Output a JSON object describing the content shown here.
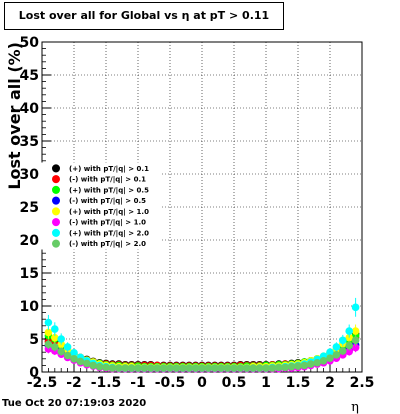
{
  "chart_data": {
    "type": "scatter",
    "title": "Lost over all for Global vs  η at pT > 0.11",
    "xlabel": "η",
    "ylabel": "Lost over all (%)",
    "xlim": [
      -2.5,
      2.5
    ],
    "ylim": [
      0,
      50
    ],
    "x_ticks": [
      "-2.5",
      "-2",
      "-1.5",
      "-1",
      "-0.5",
      "0",
      "0.5",
      "1",
      "1.5",
      "2",
      "2.5"
    ],
    "y_ticks": [
      "0",
      "5",
      "10",
      "15",
      "20",
      "25",
      "30",
      "35",
      "40",
      "45",
      "50"
    ],
    "grid": true,
    "legend_position": "left",
    "x": [
      -2.4,
      -2.3,
      -2.2,
      -2.1,
      -2.0,
      -1.9,
      -1.8,
      -1.7,
      -1.6,
      -1.5,
      -1.4,
      -1.3,
      -1.2,
      -1.1,
      -1.0,
      -0.9,
      -0.8,
      -0.7,
      -0.6,
      -0.5,
      -0.4,
      -0.3,
      -0.2,
      -0.1,
      0.0,
      0.1,
      0.2,
      0.3,
      0.4,
      0.5,
      0.6,
      0.7,
      0.8,
      0.9,
      1.0,
      1.1,
      1.2,
      1.3,
      1.4,
      1.5,
      1.6,
      1.7,
      1.8,
      1.9,
      2.0,
      2.1,
      2.2,
      2.3,
      2.4
    ],
    "series": [
      {
        "name": "(+) with pT/|q| > 0.1",
        "color": "#000000",
        "values": [
          5.0,
          4.5,
          3.8,
          3.0,
          2.5,
          2.2,
          1.9,
          1.6,
          1.4,
          1.3,
          1.2,
          1.2,
          1.1,
          1.1,
          1.1,
          1.1,
          1.1,
          1.0,
          1.0,
          1.0,
          1.0,
          1.0,
          1.0,
          1.0,
          1.0,
          1.0,
          1.0,
          1.0,
          1.0,
          1.0,
          1.1,
          1.1,
          1.1,
          1.1,
          1.1,
          1.1,
          1.2,
          1.2,
          1.3,
          1.4,
          1.5,
          1.7,
          1.9,
          2.2,
          2.6,
          3.1,
          3.8,
          4.6,
          5.8
        ]
      },
      {
        "name": "(-) with pT/|q| > 0.1",
        "color": "#ff0000",
        "values": [
          4.6,
          4.2,
          3.5,
          2.9,
          2.4,
          2.0,
          1.7,
          1.5,
          1.3,
          1.2,
          1.1,
          1.1,
          1.0,
          1.0,
          1.0,
          1.0,
          1.0,
          1.0,
          0.9,
          0.9,
          0.9,
          0.9,
          0.9,
          0.9,
          0.9,
          0.9,
          0.9,
          0.9,
          0.9,
          0.9,
          1.0,
          1.0,
          1.0,
          1.0,
          1.0,
          1.1,
          1.1,
          1.2,
          1.2,
          1.3,
          1.4,
          1.5,
          1.7,
          2.0,
          2.4,
          2.9,
          3.5,
          4.3,
          5.2
        ]
      },
      {
        "name": "(+) with pT/|q| > 0.5",
        "color": "#00ff00",
        "values": [
          5.5,
          5.0,
          4.0,
          3.2,
          2.6,
          2.1,
          1.8,
          1.5,
          1.3,
          1.1,
          1.0,
          1.0,
          0.9,
          0.9,
          0.9,
          0.8,
          0.8,
          0.8,
          0.8,
          0.8,
          0.8,
          0.8,
          0.8,
          0.8,
          0.8,
          0.8,
          0.8,
          0.8,
          0.8,
          0.8,
          0.8,
          0.9,
          0.9,
          0.9,
          1.0,
          1.0,
          1.1,
          1.1,
          1.2,
          1.3,
          1.5,
          1.7,
          2.0,
          2.3,
          2.8,
          3.3,
          4.0,
          4.8,
          5.5
        ]
      },
      {
        "name": "(-) with pT/|q| > 0.5",
        "color": "#0000ff",
        "values": [
          4.0,
          3.6,
          3.0,
          2.4,
          2.0,
          1.6,
          1.3,
          1.1,
          0.9,
          0.8,
          0.7,
          0.7,
          0.6,
          0.6,
          0.6,
          0.6,
          0.6,
          0.6,
          0.6,
          0.6,
          0.6,
          0.6,
          0.6,
          0.6,
          0.6,
          0.6,
          0.6,
          0.6,
          0.6,
          0.6,
          0.6,
          0.6,
          0.6,
          0.6,
          0.6,
          0.7,
          0.7,
          0.7,
          0.8,
          0.9,
          1.0,
          1.1,
          1.3,
          1.6,
          1.9,
          2.3,
          2.8,
          3.4,
          4.1
        ]
      },
      {
        "name": "(+) with pT/|q| > 1.0",
        "color": "#ffff00",
        "values": [
          6.0,
          5.2,
          4.2,
          3.4,
          2.7,
          2.2,
          1.8,
          1.5,
          1.2,
          1.0,
          0.9,
          0.8,
          0.8,
          0.8,
          0.7,
          0.7,
          0.7,
          0.7,
          0.7,
          0.7,
          0.7,
          0.7,
          0.7,
          0.7,
          0.7,
          0.7,
          0.7,
          0.7,
          0.7,
          0.7,
          0.7,
          0.7,
          0.8,
          0.8,
          0.8,
          0.9,
          0.9,
          1.0,
          1.1,
          1.2,
          1.4,
          1.7,
          2.0,
          2.4,
          2.9,
          3.5,
          4.3,
          5.2,
          6.2
        ]
      },
      {
        "name": "(-) with pT/|q| > 1.0",
        "color": "#ff00ff",
        "values": [
          3.5,
          3.2,
          2.7,
          2.2,
          1.8,
          1.4,
          1.1,
          0.9,
          0.7,
          0.6,
          0.5,
          0.5,
          0.5,
          0.5,
          0.5,
          0.5,
          0.5,
          0.5,
          0.5,
          0.5,
          0.5,
          0.5,
          0.5,
          0.5,
          0.5,
          0.5,
          0.5,
          0.5,
          0.5,
          0.5,
          0.5,
          0.5,
          0.5,
          0.5,
          0.5,
          0.5,
          0.5,
          0.6,
          0.6,
          0.7,
          0.8,
          1.0,
          1.2,
          1.4,
          1.7,
          2.1,
          2.6,
          3.1,
          3.7
        ]
      },
      {
        "name": "(+) with pT/|q| > 2.0",
        "color": "#00ffff",
        "values": [
          7.5,
          6.5,
          5.0,
          3.8,
          2.9,
          2.2,
          1.7,
          1.3,
          1.0,
          0.8,
          0.7,
          0.6,
          0.6,
          0.6,
          0.6,
          0.6,
          0.6,
          0.6,
          0.6,
          0.6,
          0.6,
          0.6,
          0.6,
          0.6,
          0.6,
          0.6,
          0.6,
          0.6,
          0.6,
          0.6,
          0.6,
          0.6,
          0.6,
          0.6,
          0.6,
          0.7,
          0.7,
          0.8,
          0.9,
          1.0,
          1.2,
          1.5,
          1.9,
          2.4,
          3.0,
          3.8,
          4.8,
          6.2,
          9.8
        ]
      },
      {
        "name": "(-) with pT/|q| > 2.0",
        "color": "#66cc66",
        "values": [
          4.2,
          3.8,
          3.1,
          2.5,
          2.0,
          1.6,
          1.3,
          1.0,
          0.8,
          0.7,
          0.6,
          0.6,
          0.6,
          0.6,
          0.6,
          0.6,
          0.6,
          0.6,
          0.6,
          0.6,
          0.6,
          0.6,
          0.6,
          0.6,
          0.6,
          0.6,
          0.6,
          0.6,
          0.6,
          0.6,
          0.6,
          0.6,
          0.6,
          0.6,
          0.6,
          0.6,
          0.7,
          0.7,
          0.8,
          0.9,
          1.0,
          1.2,
          1.4,
          1.7,
          2.1,
          2.6,
          3.2,
          4.0,
          4.8
        ]
      }
    ]
  },
  "footer": {
    "timestamp": "Tue Oct 20 07:19:03 2020"
  }
}
